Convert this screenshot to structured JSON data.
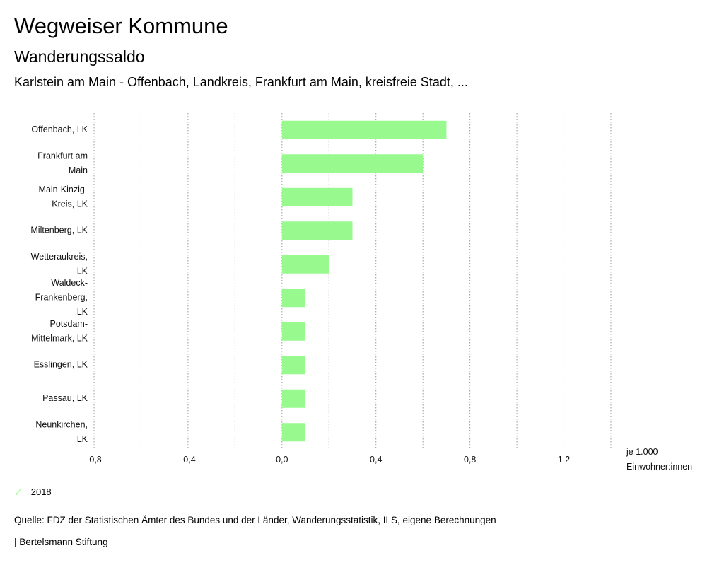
{
  "header": {
    "title": "Wegweiser Kommune",
    "subtitle": "Wanderungssaldo",
    "region": "Karlstein am Main - Offenbach, Landkreis, Frankfurt am Main, kreisfreie Stadt, ..."
  },
  "chart_data": {
    "type": "bar",
    "orientation": "horizontal",
    "categories": [
      [
        "Offenbach, LK"
      ],
      [
        "Frankfurt am",
        "Main"
      ],
      [
        "Main-Kinzig-",
        "Kreis, LK"
      ],
      [
        "Miltenberg, LK"
      ],
      [
        "Wetteraukreis,",
        "LK"
      ],
      [
        "Waldeck-",
        "Frankenberg,",
        "LK"
      ],
      [
        "Potsdam-",
        "Mittelmark, LK"
      ],
      [
        "Esslingen, LK"
      ],
      [
        "Passau, LK"
      ],
      [
        "Neunkirchen,",
        "LK"
      ]
    ],
    "series": [
      {
        "name": "2018",
        "values": [
          0.7,
          0.6,
          0.3,
          0.3,
          0.2,
          0.1,
          0.1,
          0.1,
          0.1,
          0.1
        ]
      }
    ],
    "xlim": [
      -0.8,
      1.4
    ],
    "xticks": [
      -0.8,
      -0.4,
      0.0,
      0.4,
      0.8,
      1.2
    ],
    "xtick_labels": [
      "-0,8",
      "-0,4",
      "0,0",
      "0,4",
      "0,8",
      "1,2"
    ],
    "gridlines": [
      -0.8,
      -0.6,
      -0.4,
      -0.2,
      0.0,
      0.2,
      0.4,
      0.6,
      0.8,
      1.0,
      1.2,
      1.4
    ],
    "unit_lines": [
      "je 1.000",
      "Einwohner:innen"
    ],
    "bar_color": "#98f98f",
    "grid_color": "#9a9a9a",
    "grid": true
  },
  "legend": {
    "label": "2018"
  },
  "footer": {
    "source": "Quelle: FDZ der Statistischen Ämter des Bundes und der Länder, Wanderungsstatistik, ILS, eigene Berechnungen",
    "brand": "| Bertelsmann Stiftung"
  }
}
